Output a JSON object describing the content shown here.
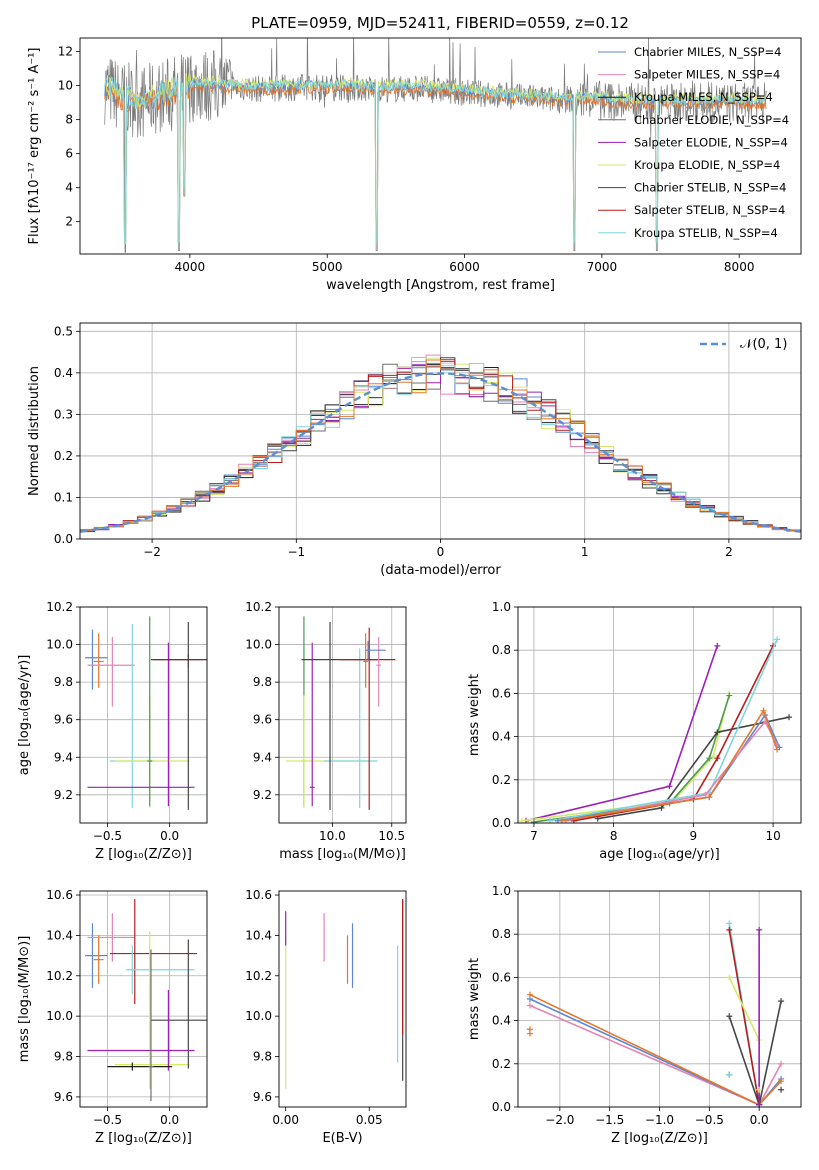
{
  "colors": {
    "Chabrier MILES": "#5b87d3",
    "Salpeter MILES": "#e683b5",
    "Kroupa MILES": "#1f1f1f",
    "Chabrier ELODIE": "#6f6f6f",
    "Salpeter ELODIE": "#9b20b5",
    "Kroupa ELODIE": "#d7e96a",
    "Chabrier STELIB": "#454545",
    "Salpeter STELIB": "#b71d1d",
    "Kroupa STELIB": "#7ed6de",
    "normal": "#5b8fd3",
    "orange": "#e5772b",
    "green": "#4b9a52"
  },
  "chart_data": [
    {
      "id": "spectrum",
      "type": "line",
      "title": "PLATE=0959, MJD=52411, FIBERID=0559, z=0.12",
      "xlabel": "wavelength [Angstrom, rest frame]",
      "ylabel": "Flux [fλ10⁻¹⁷ erg cm⁻² s⁻¹ A⁻¹]",
      "xlim": [
        3200,
        8450
      ],
      "ylim": [
        0.1,
        12.8
      ],
      "xticks": [
        4000,
        5000,
        6000,
        7000,
        8000
      ],
      "yticks": [
        2,
        4,
        6,
        8,
        10,
        12
      ],
      "grid": false,
      "legend_position": "top-right",
      "legend": [
        "Chabrier MILES, N_SSP=4",
        "Salpeter MILES, N_SSP=4",
        "Kroupa MILES, N_SSP=4",
        "Chabrier ELODIE, N_SSP=4",
        "Salpeter ELODIE, N_SSP=4",
        "Kroupa ELODIE, N_SSP=4",
        "Chabrier STELIB, N_SSP=4",
        "Salpeter STELIB, N_SSP=4",
        "Kroupa STELIB, N_SSP=4"
      ],
      "legend_series": [
        "Chabrier MILES",
        "Salpeter MILES",
        "Kroupa MILES",
        "Chabrier ELODIE",
        "Salpeter ELODIE",
        "Kroupa ELODIE",
        "Chabrier STELIB",
        "Salpeter STELIB",
        "Kroupa STELIB"
      ],
      "continuum": {
        "x": [
          3380,
          3500,
          3650,
          3800,
          4000,
          4200,
          4500,
          4800,
          5100,
          5400,
          5700,
          6000,
          6300,
          6600,
          6900,
          7200,
          7500,
          7800,
          8100,
          8200
        ],
        "y": [
          9.9,
          9.3,
          9.0,
          9.4,
          10.0,
          10.0,
          9.8,
          9.9,
          9.9,
          9.8,
          9.8,
          9.6,
          9.4,
          9.2,
          9.2,
          9.0,
          9.0,
          9.0,
          9.0,
          9.0
        ]
      },
      "absorption_features": [
        {
          "x": 3530,
          "y": 0.2
        },
        {
          "x": 3920,
          "y": 0.3
        },
        {
          "x": 3960,
          "y": 3.5
        },
        {
          "x": 5360,
          "y": 0.3
        },
        {
          "x": 6800,
          "y": 0.3
        },
        {
          "x": 7400,
          "y": 0.3
        }
      ]
    },
    {
      "id": "residuals",
      "type": "bar",
      "xlabel": "(data-model)/error",
      "ylabel": "Normed distribution",
      "xlim": [
        -2.5,
        2.5
      ],
      "ylim": [
        0,
        0.52
      ],
      "xticks": [
        -2,
        -1,
        0,
        1,
        2
      ],
      "yticks": [
        0.0,
        0.1,
        0.2,
        0.3,
        0.4,
        0.5
      ],
      "grid": true,
      "legend_position": "top-right",
      "legend": [
        "𝒩(0, 1)"
      ],
      "bin_width": 0.1,
      "bin_start": -2.5
    },
    {
      "id": "age_vs_Z",
      "type": "scatter",
      "xlabel": "Z [log₁₀(Z/Z⊙)]",
      "ylabel": "age  [log₁₀(age/yr)]",
      "xlim": [
        -0.72,
        0.3
      ],
      "ylim": [
        9.05,
        10.2
      ],
      "xticks": [
        -0.5,
        0.0
      ],
      "yticks": [
        9.2,
        9.4,
        9.6,
        9.8,
        10.0,
        10.2
      ],
      "grid": true,
      "errorbars": [
        {
          "series": "Chabrier MILES",
          "x": -0.62,
          "y": 9.93,
          "xerr": [
            0.06,
            0.12
          ],
          "yerr": [
            0.17,
            0.15
          ]
        },
        {
          "series": "orange",
          "x": -0.57,
          "y": 9.91,
          "xerr": [
            0.04,
            0.04
          ],
          "yerr": [
            0.14,
            0.15
          ]
        },
        {
          "series": "Salpeter MILES",
          "x": -0.46,
          "y": 9.89,
          "xerr": [
            0.2,
            0.18
          ],
          "yerr": [
            0.22,
            0.15
          ]
        },
        {
          "series": "Kroupa STELIB",
          "x": -0.3,
          "y": 9.38,
          "xerr": [
            0.18,
            0.18
          ],
          "yerr": [
            0.25,
            0.73
          ]
        },
        {
          "series": "Kroupa ELODIE",
          "x": -0.16,
          "y": 9.38,
          "xerr": [
            0.28,
            0.32
          ],
          "yerr": [
            0.25,
            0.35
          ]
        },
        {
          "series": "green",
          "x": -0.16,
          "y": 9.38,
          "xerr": [
            0.02,
            0.02
          ],
          "yerr": [
            0.24,
            0.77
          ]
        },
        {
          "series": "Salpeter ELODIE",
          "x": -0.01,
          "y": 9.24,
          "xerr": [
            0.65,
            0.21
          ],
          "yerr": [
            0.1,
            0.77
          ]
        },
        {
          "series": "Salpeter STELIB",
          "x": 0.15,
          "y": 9.92,
          "xerr": [
            0.28,
            0.12
          ],
          "yerr": [
            0.04,
            0.03
          ]
        },
        {
          "series": "Chabrier STELIB",
          "x": 0.15,
          "y": 9.92,
          "xerr": [
            0.3,
            0.16
          ],
          "yerr": [
            0.8,
            0.2
          ]
        }
      ]
    },
    {
      "id": "age_vs_mass",
      "type": "scatter",
      "xlabel": "mass [log₁₀(M/M⊙)]",
      "xlim": [
        9.55,
        10.62
      ],
      "ylim": [
        9.05,
        10.2
      ],
      "xticks": [
        10.0,
        10.5
      ],
      "yticks": [
        9.2,
        9.4,
        9.6,
        9.8,
        10.0,
        10.2
      ],
      "grid": true,
      "errorbars": [
        {
          "series": "green",
          "x": 9.76,
          "y": 9.38,
          "xerr": [
            0.02,
            0.02
          ],
          "yerr": [
            0.24,
            0.77
          ]
        },
        {
          "series": "Kroupa ELODIE",
          "x": 9.76,
          "y": 9.38,
          "xerr": [
            0.15,
            0.55
          ],
          "yerr": [
            0.25,
            0.35
          ]
        },
        {
          "series": "Kroupa STELIB",
          "x": 10.23,
          "y": 9.38,
          "xerr": [
            0.3,
            0.15
          ],
          "yerr": [
            0.25,
            0.6
          ]
        },
        {
          "series": "Salpeter ELODIE",
          "x": 9.83,
          "y": 9.24,
          "xerr": [
            0.02,
            0.02
          ],
          "yerr": [
            0.1,
            0.77
          ]
        },
        {
          "series": "Chabrier STELIB",
          "x": 9.98,
          "y": 9.92,
          "xerr": [
            0.24,
            0.4
          ],
          "yerr": [
            0.8,
            0.2
          ]
        },
        {
          "series": "Salpeter STELIB",
          "x": 10.31,
          "y": 9.92,
          "xerr": [
            0.25,
            0.22
          ],
          "yerr": [
            0.8,
            0.17
          ]
        },
        {
          "series": "orange",
          "x": 10.28,
          "y": 9.91,
          "xerr": [
            0.02,
            0.02
          ],
          "yerr": [
            0.14,
            0.15
          ]
        },
        {
          "series": "Salpeter MILES",
          "x": 10.39,
          "y": 9.89,
          "xerr": [
            0.02,
            0.02
          ],
          "yerr": [
            0.22,
            0.15
          ]
        },
        {
          "series": "Chabrier MILES",
          "x": 10.3,
          "y": 9.97,
          "xerr": [
            0.02,
            0.15
          ],
          "yerr": [
            0.05,
            0.05
          ]
        }
      ]
    },
    {
      "id": "weight_vs_age",
      "type": "line",
      "xlabel": "age  [log₁₀(age/yr)]",
      "ylabel": "mass weight",
      "xlim": [
        6.8,
        10.35
      ],
      "ylim": [
        0,
        1
      ],
      "xticks": [
        7,
        8,
        9,
        10
      ],
      "yticks": [
        0.0,
        0.2,
        0.4,
        0.6,
        0.8,
        1.0
      ],
      "grid": true,
      "series": [
        {
          "series": "Salpeter ELODIE",
          "x": [
            6.9,
            8.7,
            9.3
          ],
          "y": [
            0.01,
            0.17,
            0.82
          ]
        },
        {
          "series": "Kroupa ELODIE",
          "x": [
            6.85,
            8.75,
            9.25,
            9.45
          ],
          "y": [
            0.01,
            0.1,
            0.31,
            0.6
          ]
        },
        {
          "series": "green",
          "x": [
            7.0,
            8.7,
            9.2,
            9.45
          ],
          "y": [
            0.005,
            0.09,
            0.3,
            0.59
          ]
        },
        {
          "series": "Chabrier STELIB",
          "x": [
            7.8,
            8.6,
            9.3,
            10.2
          ],
          "y": [
            0.02,
            0.07,
            0.42,
            0.49
          ]
        },
        {
          "series": "Salpeter STELIB",
          "x": [
            7.5,
            9.0,
            9.3,
            10.0
          ],
          "y": [
            0.01,
            0.11,
            0.3,
            0.82
          ]
        },
        {
          "series": "Kroupa STELIB",
          "x": [
            7.2,
            9.2,
            10.05
          ],
          "y": [
            0.01,
            0.14,
            0.85
          ]
        },
        {
          "series": "Chabrier MILES",
          "x": [
            7.3,
            9.2,
            9.9,
            10.08
          ],
          "y": [
            0.01,
            0.12,
            0.5,
            0.35
          ]
        },
        {
          "series": "Salpeter MILES",
          "x": [
            7.4,
            9.15,
            9.9,
            10.05
          ],
          "y": [
            0.01,
            0.13,
            0.47,
            0.36
          ]
        },
        {
          "series": "orange",
          "x": [
            7.35,
            9.2,
            9.88,
            10.05
          ],
          "y": [
            0.01,
            0.12,
            0.52,
            0.34
          ]
        }
      ]
    },
    {
      "id": "mass_vs_Z",
      "type": "scatter",
      "xlabel": "Z [log₁₀(Z/Z⊙)]",
      "ylabel": "mass [log₁₀(M/M⊙)]",
      "xlim": [
        -0.72,
        0.3
      ],
      "ylim": [
        9.55,
        10.62
      ],
      "xticks": [
        -0.5,
        0.0
      ],
      "yticks": [
        9.6,
        9.8,
        10.0,
        10.2,
        10.4,
        10.6
      ],
      "grid": true,
      "errorbars": [
        {
          "series": "Chabrier MILES",
          "x": -0.62,
          "y": 10.3,
          "xerr": [
            0.06,
            0.12
          ],
          "yerr": [
            0.16,
            0.16
          ]
        },
        {
          "series": "orange",
          "x": -0.57,
          "y": 10.28,
          "xerr": [
            0.04,
            0.04
          ],
          "yerr": [
            0.12,
            0.12
          ]
        },
        {
          "series": "Salpeter MILES",
          "x": -0.46,
          "y": 10.39,
          "xerr": [
            0.2,
            0.18
          ],
          "yerr": [
            0.12,
            0.12
          ]
        },
        {
          "series": "Salpeter STELIB",
          "x": -0.28,
          "y": 10.31,
          "xerr": [
            0.2,
            0.5
          ],
          "yerr": [
            0.25,
            0.27
          ]
        },
        {
          "series": "Kroupa STELIB",
          "x": -0.3,
          "y": 10.23,
          "xerr": [
            0.05,
            0.5
          ],
          "yerr": [
            0.12,
            0.12
          ]
        },
        {
          "series": "Kroupa ELODIE",
          "x": -0.16,
          "y": 9.76,
          "xerr": [
            0.28,
            0.32
          ],
          "yerr": [
            0.12,
            0.66
          ]
        },
        {
          "series": "Chabrier STELIB",
          "x": 0.15,
          "y": 9.98,
          "xerr": [
            0.3,
            0.16
          ],
          "yerr": [
            0.24,
            0.4
          ]
        },
        {
          "series": "Salpeter ELODIE",
          "x": -0.01,
          "y": 9.83,
          "xerr": [
            0.65,
            0.21
          ],
          "yerr": [
            0.1,
            0.3
          ]
        },
        {
          "series": "Kroupa MILES",
          "x": -0.3,
          "y": 9.75,
          "xerr": [
            0.2,
            0.32
          ],
          "yerr": [
            0.02,
            0.02
          ]
        },
        {
          "series": "Chabrier ELODIE",
          "x": -0.15,
          "y": 9.75,
          "xerr": [
            0.02,
            0.02
          ],
          "yerr": [
            0.17,
            0.58
          ]
        }
      ]
    },
    {
      "id": "mass_vs_ebv",
      "type": "scatter",
      "xlabel": "E(B-V)",
      "xlim": [
        -0.004,
        0.072
      ],
      "ylim": [
        9.55,
        10.62
      ],
      "xticks": [
        0.0,
        0.05
      ],
      "yticks": [
        9.6,
        9.8,
        10.0,
        10.2,
        10.4,
        10.6
      ],
      "grid": false,
      "errorbars": [
        {
          "series": "Kroupa ELODIE",
          "x": 0.0,
          "y": 9.76,
          "xerr": [
            0,
            0
          ],
          "yerr": [
            0.12,
            0.66
          ]
        },
        {
          "series": "Salpeter ELODIE",
          "x": 0.0,
          "y": 10.45,
          "xerr": [
            0,
            0
          ],
          "yerr": [
            0.1,
            0.07
          ]
        },
        {
          "series": "Salpeter MILES",
          "x": 0.023,
          "y": 10.39,
          "xerr": [
            0,
            0
          ],
          "yerr": [
            0.12,
            0.12
          ]
        },
        {
          "series": "orange",
          "x": 0.037,
          "y": 10.28,
          "xerr": [
            0,
            0
          ],
          "yerr": [
            0.12,
            0.12
          ]
        },
        {
          "series": "Chabrier MILES",
          "x": 0.04,
          "y": 10.3,
          "xerr": [
            0,
            0
          ],
          "yerr": [
            0.16,
            0.16
          ]
        },
        {
          "series": "Kroupa STELIB",
          "x": 0.067,
          "y": 10.23,
          "xerr": [
            0,
            0
          ],
          "yerr": [
            0.46,
            0.12
          ]
        },
        {
          "series": "Chabrier STELIB",
          "x": 0.07,
          "y": 9.98,
          "xerr": [
            0,
            0
          ],
          "yerr": [
            0.3,
            0.6
          ]
        },
        {
          "series": "Salpeter STELIB",
          "x": 0.07,
          "y": 10.31,
          "xerr": [
            0,
            0
          ],
          "yerr": [
            0.4,
            0.27
          ]
        }
      ]
    },
    {
      "id": "weight_vs_Z",
      "type": "line",
      "xlabel": "Z [log₁₀(Z/Z⊙)]",
      "ylabel": "mass weight",
      "xlim": [
        -2.42,
        0.42
      ],
      "ylim": [
        0,
        1
      ],
      "xticks": [
        -2.0,
        -1.5,
        -1.0,
        -0.5,
        0.0
      ],
      "yticks": [
        0.0,
        0.2,
        0.4,
        0.6,
        0.8,
        1.0
      ],
      "grid": true,
      "series": [
        {
          "series": "Salpeter MILES",
          "x": [
            -2.3,
            0.0,
            0.22
          ],
          "y": [
            0.47,
            0.01,
            0.2
          ]
        },
        {
          "series": "Chabrier MILES",
          "x": [
            -2.3,
            0.0,
            0.22
          ],
          "y": [
            0.5,
            0.01,
            0.13
          ]
        },
        {
          "series": "orange",
          "x": [
            -2.3,
            0.0,
            0.22
          ],
          "y": [
            0.52,
            0.01,
            0.12
          ]
        },
        {
          "series": "Kroupa STELIB",
          "x": [
            -0.3,
            0.0
          ],
          "y": [
            0.85,
            0.01
          ]
        },
        {
          "series": "Salpeter STELIB",
          "x": [
            -0.3,
            0.0
          ],
          "y": [
            0.82,
            0.01
          ]
        },
        {
          "series": "Chabrier STELIB",
          "x": [
            -0.3,
            0.0,
            0.22
          ],
          "y": [
            0.42,
            0.01,
            0.49
          ]
        },
        {
          "series": "Kroupa ELODIE",
          "x": [
            -0.3,
            0.0
          ],
          "y": [
            0.6,
            0.31
          ]
        },
        {
          "series": "Salpeter ELODIE",
          "x": [
            0.0,
            0.0
          ],
          "y": [
            0.82,
            0.01
          ]
        }
      ],
      "markers": [
        {
          "series": "orange",
          "x": -2.3,
          "y": [
            0.34,
            0.36
          ]
        },
        {
          "series": "Chabrier STELIB",
          "x": -0.3,
          "y": [
            0.15
          ]
        },
        {
          "series": "Kroupa STELIB",
          "x": -0.3,
          "y": [
            0.15
          ]
        },
        {
          "series": "Kroupa ELODIE",
          "x": 0.0,
          "y": [
            0.08
          ]
        },
        {
          "series": "Chabrier STELIB",
          "x": 0.22,
          "y": [
            0.08
          ]
        }
      ]
    }
  ]
}
